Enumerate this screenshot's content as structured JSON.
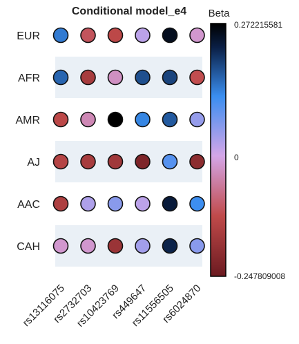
{
  "chart_data": {
    "type": "heatmap",
    "title": "Conditional model_e4",
    "colorbar": {
      "title": "Beta",
      "max_label": "0.272215581",
      "mid_label": "0",
      "min_label": "-0.247809008",
      "vmin": -0.247809008,
      "vmax": 0.272215581,
      "colors": [
        "#6b1a20",
        "#c04a4a",
        "#d4a6e8",
        "#3a8ef0",
        "#0a1f45",
        "#000000"
      ]
    },
    "row_band_color": "#eaf0f6",
    "rows": [
      "EUR",
      "AFR",
      "AMR",
      "AJ",
      "AAC",
      "CAH"
    ],
    "columns": [
      "rs13116075",
      "rs2732703",
      "rs10423769",
      "rs449647",
      "rs11556505",
      "rs6024870"
    ],
    "values": [
      [
        0.14,
        -0.11,
        -0.13,
        0.02,
        0.25,
        -0.02
      ],
      [
        0.16,
        -0.16,
        -0.03,
        0.18,
        0.19,
        -0.12
      ],
      [
        -0.13,
        -0.04,
        0.272,
        0.13,
        0.17,
        0.05
      ],
      [
        -0.14,
        -0.16,
        -0.17,
        -0.22,
        0.1,
        -0.2
      ],
      [
        -0.15,
        0.03,
        0.06,
        0.02,
        0.23,
        0.12
      ],
      [
        -0.02,
        -0.02,
        -0.18,
        0.04,
        0.22,
        0.06
      ]
    ]
  }
}
